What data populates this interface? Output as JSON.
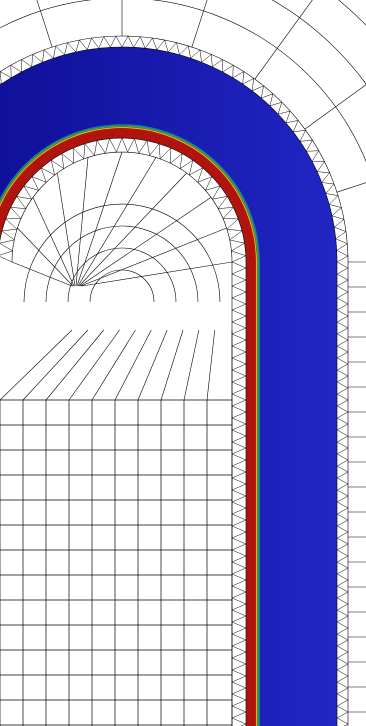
{
  "figure": {
    "title": "",
    "colors": {
      "background": "#ffffff",
      "mesh_line": "#000000",
      "field_low": "#0a0a8c",
      "field_mid": "#1f22c8",
      "field_high": "#b0140c",
      "interface_green": "#2fa84a",
      "interface_yellow": "#e8d21a",
      "interface_teal": "#1f9aa8"
    },
    "regions": [
      {
        "name": "outer-structured-mesh",
        "fill": "none"
      },
      {
        "name": "unstructured-triangle-band-outer",
        "fill": "none"
      },
      {
        "name": "blue-annulus-field",
        "fill": "field_mid"
      },
      {
        "name": "red-inner-layer-field",
        "fill": "field_high"
      },
      {
        "name": "unstructured-triangle-band-inner",
        "fill": "none"
      },
      {
        "name": "inner-structured-mesh",
        "fill": "none"
      }
    ]
  }
}
